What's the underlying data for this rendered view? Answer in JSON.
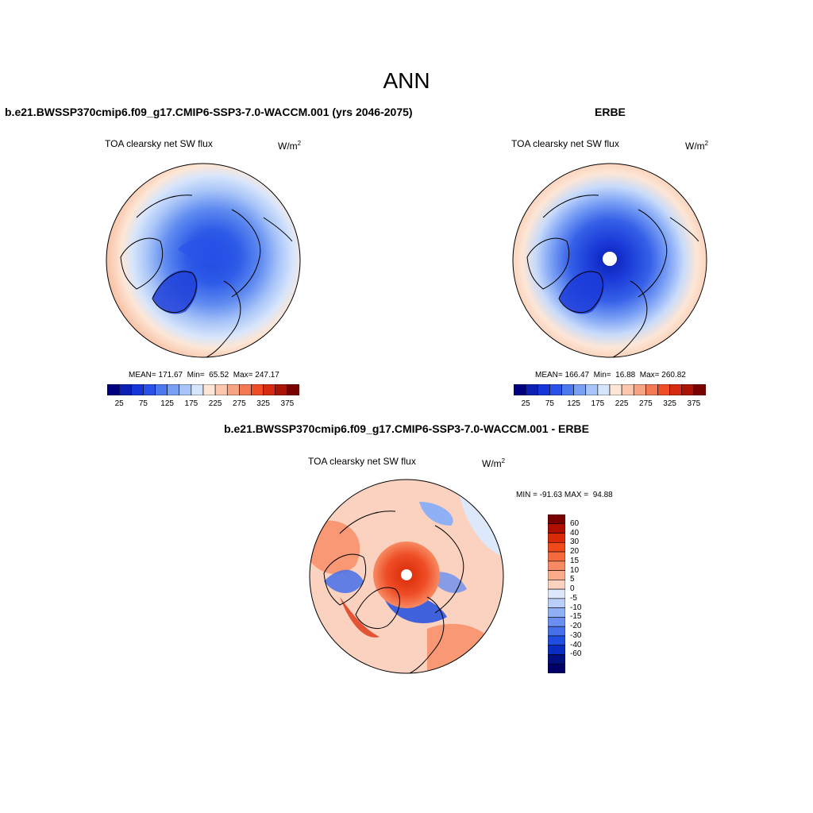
{
  "main_title": "ANN",
  "panels": {
    "model": {
      "title": "b.e21.BWSSP370cmip6.f09_g17.CMIP6-SSP3-7.0-WACCM.001 (yrs 2046-2075)",
      "var_label": "TOA clearsky net SW flux",
      "units": "W/m",
      "units_sup": "2",
      "stats": "MEAN= 171.67  Min=  65.52  Max= 247.17"
    },
    "obs": {
      "title": "ERBE",
      "var_label": "TOA clearsky net SW flux",
      "units": "W/m",
      "units_sup": "2",
      "stats": "MEAN= 166.47  Min=  16.88  Max= 260.82"
    },
    "diff": {
      "title": "b.e21.BWSSP370cmip6.f09_g17.CMIP6-SSP3-7.0-WACCM.001 - ERBE",
      "var_label": "TOA clearsky net SW flux",
      "units": "W/m",
      "units_sup": "2",
      "stats": "MIN = -91.63 MAX =  94.88"
    }
  },
  "colorbar_abs": {
    "colors": [
      "#00007f",
      "#0b1fb3",
      "#1636d9",
      "#2a52e8",
      "#4d79f0",
      "#7aa0f5",
      "#a8c4f8",
      "#d6e5fb",
      "#fde6d6",
      "#fbc8ae",
      "#f8a384",
      "#f47a55",
      "#ee4d26",
      "#d62b10",
      "#a91507",
      "#7a0000"
    ],
    "tick_labels": [
      "25",
      "75",
      "125",
      "175",
      "225",
      "275",
      "325",
      "375"
    ]
  },
  "colorbar_diff": {
    "colors": [
      "#7a0000",
      "#b00f00",
      "#d92a07",
      "#f0491a",
      "#f46a3c",
      "#f78a62",
      "#f9ab8c",
      "#fbd2bf",
      "#dde8fb",
      "#b9cef8",
      "#8fb0f4",
      "#6a8ff0",
      "#4570ea",
      "#1e4de0",
      "#0b2cc0",
      "#001080",
      "#000068"
    ],
    "tick_labels": [
      "60",
      "40",
      "30",
      "20",
      "15",
      "10",
      "5",
      "0",
      "-5",
      "-10",
      "-15",
      "-20",
      "-30",
      "-40",
      "-60"
    ]
  }
}
